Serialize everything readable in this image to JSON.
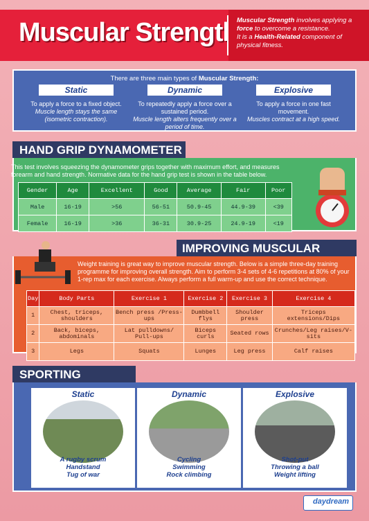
{
  "header": {
    "title": "Muscular Strength",
    "definition_lead": "Muscular Strength",
    "definition_1": " involves applying a ",
    "definition_force": "force",
    "definition_2": " to overcome a resistance.",
    "definition_3": "It is a ",
    "definition_health": "Health-Related",
    "definition_4": " component of physical fitness."
  },
  "types": {
    "intro": "There are three main types of ",
    "intro_bold": "Muscular Strength:",
    "items": [
      {
        "label": "Static",
        "line1": "To apply a force to a fixed object.",
        "line2": "Muscle length stays the same (isometric contraction)."
      },
      {
        "label": "Dynamic",
        "line1": "To repeatedly apply a force over a sustained period.",
        "line2": "Muscle length alters frequently over a period of time."
      },
      {
        "label": "Explosive",
        "line1": "To apply a force in one fast movement.",
        "line2": "Muscles contract at a high speed."
      }
    ]
  },
  "grip": {
    "heading": "HAND GRIP DYNAMOMETER TEST",
    "text": "This test involves squeezing the dynamometer grips together with maximum effort, and measures forearm and hand strength. Normative data for the hand grip test is shown in the table below.",
    "columns": [
      "Gender",
      "Age",
      "Excellent",
      "Good",
      "Average",
      "Fair",
      "Poor"
    ],
    "rows": [
      [
        "Male",
        "16-19",
        ">56",
        "56-51",
        "50.9-45",
        "44.9-39",
        "<39"
      ],
      [
        "Female",
        "16-19",
        ">36",
        "36-31",
        "30.9-25",
        "24.9-19",
        "<19"
      ]
    ]
  },
  "improve": {
    "heading": "IMPROVING MUSCULAR STRENGTH",
    "text": "Weight training is great way to improve muscular strength. Below is a simple three-day training programme for improving overall strength. Aim to perform 3-4 sets of 4-6 repetitions at 80% of your 1-rep max for each exercise. Always perform a full warm-up and use the correct technique.",
    "columns": [
      "Day",
      "Body Parts",
      "Exercise 1",
      "Exercise 2",
      "Exercise 3",
      "Exercise 4"
    ],
    "rows": [
      [
        "1",
        "Chest, triceps, shoulders",
        "Bench press /Press-ups",
        "Dumbbell flys",
        "Shoulder press",
        "Triceps extensions/Dips"
      ],
      [
        "2",
        "Back, biceps, abdominals",
        "Lat pulldowns/ Pull-ups",
        "Biceps curls",
        "Seated rows",
        "Crunches/Leg raises/V-sits"
      ],
      [
        "3",
        "Legs",
        "Squats",
        "Lunges",
        "Leg press",
        "Calf raises"
      ]
    ]
  },
  "sport": {
    "heading": "SPORTING RELEVANCE",
    "cards": [
      {
        "label": "Static",
        "examples": [
          "A rugby scrum",
          "Handstand",
          "Tug of war"
        ]
      },
      {
        "label": "Dynamic",
        "examples": [
          "Cycling",
          "Swimming",
          "Rock climbing"
        ]
      },
      {
        "label": "Explosive",
        "examples": [
          "Shot-put",
          "Throwing a ball",
          "Weight lifting"
        ]
      }
    ]
  },
  "brand": {
    "name": "daydream"
  },
  "colors": {
    "title_red": "#e5203a",
    "blue": "#4a68b2",
    "green": "#4cb36a",
    "orange": "#e75d2f",
    "navy": "#2f3a63"
  }
}
